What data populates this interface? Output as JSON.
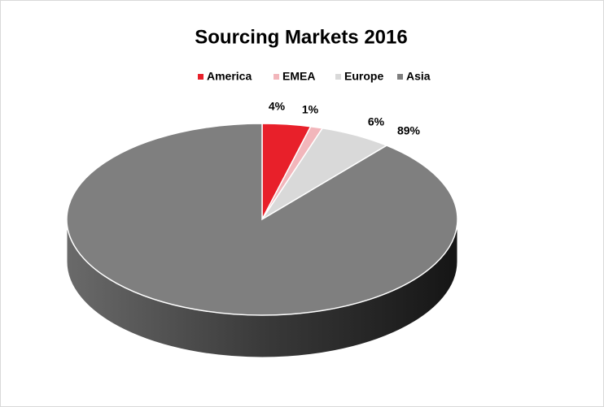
{
  "chart_data": {
    "type": "pie",
    "title": "Sourcing Markets 2016",
    "categories": [
      "America",
      "EMEA",
      "Europe",
      "Asia"
    ],
    "values": [
      4,
      1,
      6,
      89
    ],
    "value_labels": [
      "4%",
      "1%",
      "6%",
      "89%"
    ],
    "colors": [
      "#e8202a",
      "#f2b6bb",
      "#d9d9d9",
      "#7f7f7f"
    ],
    "legend": "top"
  }
}
